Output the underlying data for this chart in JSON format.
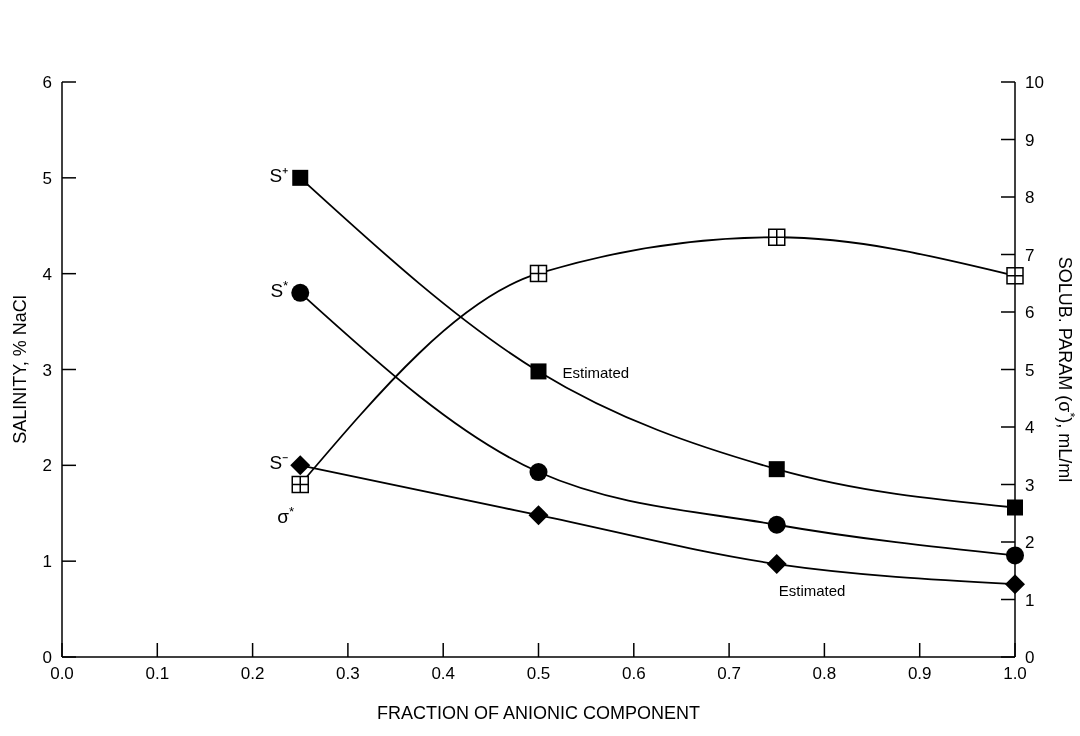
{
  "chart_data": {
    "type": "line",
    "xlabel": "FRACTION OF ANIONIC COMPONENT",
    "ylabel": "SALINITY, % NaCl",
    "y2label": "SOLUB. PARAM (σ$^{*}$), mL/ml",
    "x": [
      0.25,
      0.5,
      0.75,
      1.0
    ],
    "xlim": [
      0,
      1
    ],
    "xticks": [
      {
        "value": 0,
        "label": "0.0"
      },
      0.1,
      0.2,
      0.3,
      0.4,
      0.5,
      0.6,
      0.7,
      0.8,
      0.9,
      {
        "value": 1,
        "label": "1.0"
      }
    ],
    "ylim": [
      0,
      6
    ],
    "yticks": [
      0,
      1,
      2,
      3,
      4,
      5,
      6
    ],
    "y2lim": [
      0,
      10
    ],
    "y2ticks": [
      0,
      1,
      2,
      3,
      4,
      5,
      6,
      7,
      8,
      9,
      10
    ],
    "grid": false,
    "line_style": "solid",
    "series": [
      {
        "name": "S⁺",
        "color": "#000000",
        "marker": "square",
        "values": [
          5.0,
          2.98,
          1.96,
          1.56
        ]
      },
      {
        "name": "S$^{*}$",
        "color": "#000000",
        "marker": "circle",
        "values": [
          3.8,
          1.93,
          1.38,
          1.06
        ]
      },
      {
        "name": "S⁻",
        "color": "#000000",
        "marker": "diamond",
        "values": [
          2.0,
          1.48,
          0.97,
          0.76
        ]
      },
      {
        "name": "σ$^{*}$",
        "color": "#000000",
        "marker": "square",
        "axis": "y2",
        "values": [
          3.0,
          6.67,
          7.3,
          6.63
        ]
      }
    ],
    "annotations": [
      {
        "text": "Estimated",
        "x": 0.5,
        "y": 2.98
      },
      {
        "text": "Estimated",
        "x": 0.75,
        "y": 0.97
      }
    ]
  }
}
